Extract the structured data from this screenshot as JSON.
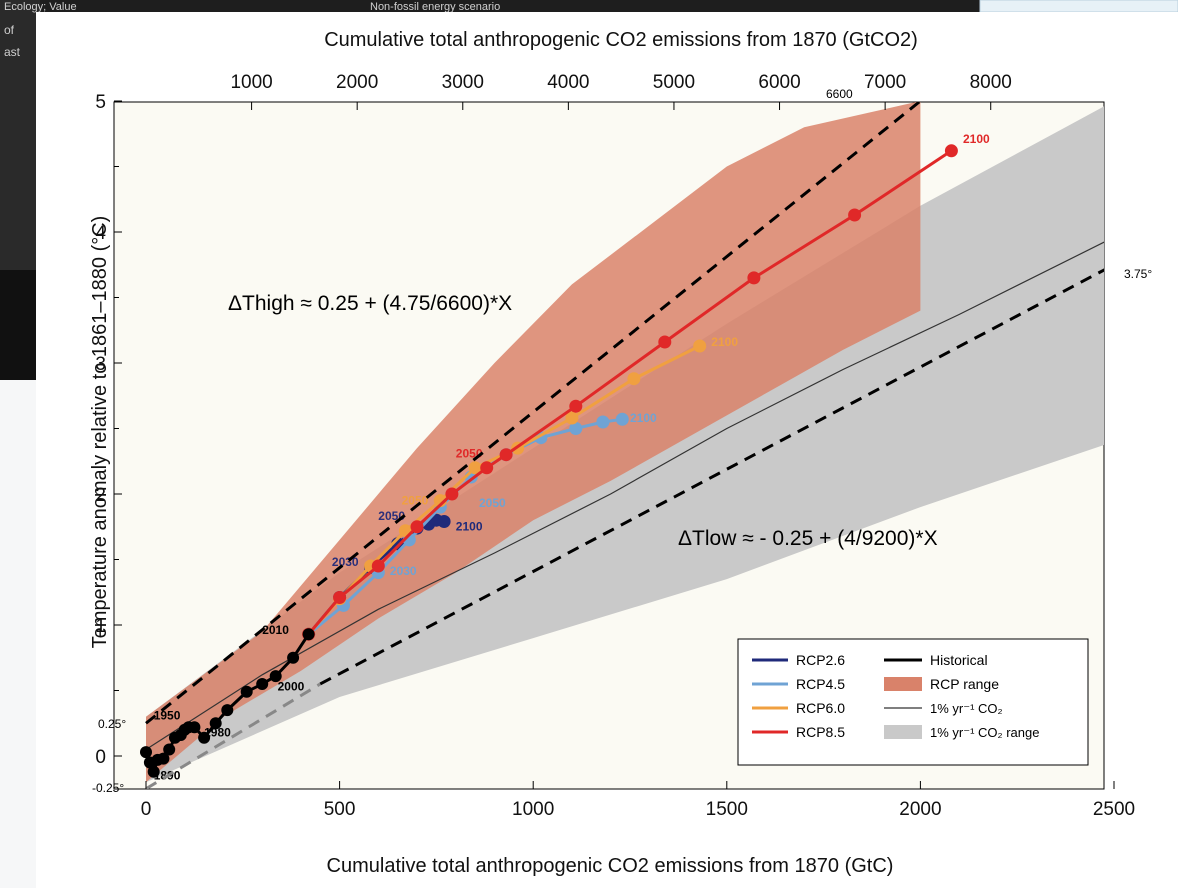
{
  "background_window": {
    "title_left": "Ecology; Value",
    "title_right": "Non-fossil energy scenario",
    "left_text": [
      "of",
      "ast"
    ]
  },
  "chart_data": {
    "type": "line",
    "xlabel": "Cumulative total anthropogenic CO2 emissions from 1870 (GtC)",
    "x2label": "Cumulative total anthropogenic CO2 emissions from 1870 (GtCO2)",
    "ylabel": "Temperature anomaly relative to 1861–1880 (°C)",
    "xlim": [
      0,
      2500
    ],
    "ylim": [
      -0.3,
      5
    ],
    "xticks": [
      0,
      500,
      1000,
      1500,
      2000,
      2500
    ],
    "yticks": [
      0,
      1,
      2,
      3,
      4,
      5
    ],
    "x2ticks": [
      1000,
      2000,
      3000,
      4000,
      5000,
      6000,
      7000,
      8000
    ],
    "series": [
      {
        "name": "Historical",
        "color": "#000000",
        "x": [
          0,
          10,
          20,
          30,
          45,
          60,
          75,
          90,
          100,
          110,
          125,
          150,
          180,
          210,
          260,
          300,
          335,
          380,
          420
        ],
        "y": [
          0.03,
          -0.05,
          -0.12,
          -0.03,
          -0.02,
          0.05,
          0.14,
          0.16,
          0.2,
          0.22,
          0.22,
          0.14,
          0.25,
          0.35,
          0.49,
          0.55,
          0.61,
          0.75,
          0.93
        ],
        "labels": [
          "1890",
          "1950",
          "1980",
          "2000",
          "2010"
        ]
      },
      {
        "name": "RCP2.6",
        "color": "#1f2a7a",
        "x": [
          420,
          500,
          580,
          650,
          700,
          730,
          750,
          770
        ],
        "y": [
          0.93,
          1.21,
          1.44,
          1.62,
          1.74,
          1.77,
          1.8,
          1.79
        ],
        "labels": [
          "2030",
          "2050",
          "2100"
        ]
      },
      {
        "name": "RCP4.5",
        "color": "#6fa3d4",
        "x": [
          420,
          510,
          600,
          680,
          760,
          840,
          930,
          1020,
          1110,
          1180,
          1230
        ],
        "y": [
          0.93,
          1.15,
          1.4,
          1.65,
          1.9,
          2.13,
          2.3,
          2.43,
          2.5,
          2.55,
          2.57
        ],
        "labels": [
          "2030",
          "2050",
          "2100"
        ]
      },
      {
        "name": "RCP6.0",
        "color": "#f0a040",
        "x": [
          420,
          500,
          580,
          670,
          760,
          850,
          960,
          1100,
          1260,
          1430
        ],
        "y": [
          0.93,
          1.2,
          1.45,
          1.72,
          1.95,
          2.2,
          2.35,
          2.58,
          2.88,
          3.13
        ],
        "labels": [
          "2050",
          "2100"
        ]
      },
      {
        "name": "RCP8.5",
        "color": "#e02828",
        "x": [
          420,
          500,
          600,
          700,
          790,
          880,
          930,
          1110,
          1340,
          1570,
          1830,
          2080
        ],
        "y": [
          0.93,
          1.21,
          1.45,
          1.75,
          2.0,
          2.2,
          2.3,
          2.67,
          3.16,
          3.65,
          4.13,
          4.62
        ],
        "labels": [
          "2050",
          "2100"
        ]
      },
      {
        "name": "1% yr⁻¹ CO₂",
        "color": "#333333",
        "x": [
          0,
          300,
          600,
          900,
          1200,
          1500,
          1800,
          2100,
          2500
        ],
        "y": [
          0.05,
          0.62,
          1.12,
          1.55,
          2.0,
          2.5,
          2.95,
          3.37,
          3.96
        ]
      }
    ],
    "rcp_range": {
      "color": "#d9826a",
      "upper": [
        [
          0,
          0.3
        ],
        [
          300,
          0.95
        ],
        [
          500,
          1.65
        ],
        [
          700,
          2.35
        ],
        [
          900,
          3.0
        ],
        [
          1100,
          3.6
        ],
        [
          1300,
          4.05
        ],
        [
          1500,
          4.5
        ],
        [
          1700,
          4.8
        ],
        [
          2000,
          5.0
        ]
      ],
      "lower": [
        [
          2000,
          3.4
        ],
        [
          1800,
          3.1
        ],
        [
          1500,
          2.6
        ],
        [
          1200,
          2.1
        ],
        [
          1000,
          1.8
        ],
        [
          800,
          1.4
        ],
        [
          600,
          1.05
        ],
        [
          400,
          0.65
        ],
        [
          200,
          0.3
        ],
        [
          0,
          -0.2
        ]
      ]
    },
    "pct_range": {
      "color": "#c9c9c9",
      "upper": [
        [
          0,
          0.3
        ],
        [
          500,
          1.4
        ],
        [
          1000,
          2.35
        ],
        [
          1500,
          3.3
        ],
        [
          2000,
          4.2
        ],
        [
          2500,
          5.0
        ]
      ],
      "lower": [
        [
          2500,
          2.4
        ],
        [
          2000,
          1.9
        ],
        [
          1500,
          1.35
        ],
        [
          1000,
          0.9
        ],
        [
          500,
          0.45
        ],
        [
          0,
          -0.2
        ]
      ]
    },
    "dashed_lines": [
      {
        "name": "high",
        "x": [
          0,
          2000
        ],
        "y": [
          0.25,
          5.0
        ]
      },
      {
        "name": "low",
        "x": [
          450,
          2500
        ],
        "y": [
          0.55,
          3.75
        ]
      }
    ],
    "annotations": {
      "high_formula": "ΔThigh ≈ 0.25 + (4.75/6600)*X",
      "low_formula": "ΔTlow ≈ - 0.25 + (4/9200)*X",
      "top_6600": "6600",
      "right_375": "3.75°",
      "left_025": "0.25°",
      "left_m025": "-0.25°"
    },
    "legend": {
      "position": "bottom-right",
      "entries": [
        "RCP2.6",
        "RCP4.5",
        "RCP6.0",
        "RCP8.5",
        "Historical",
        "RCP range",
        "1% yr⁻¹ CO₂",
        "1% yr⁻¹ CO₂ range"
      ]
    }
  }
}
